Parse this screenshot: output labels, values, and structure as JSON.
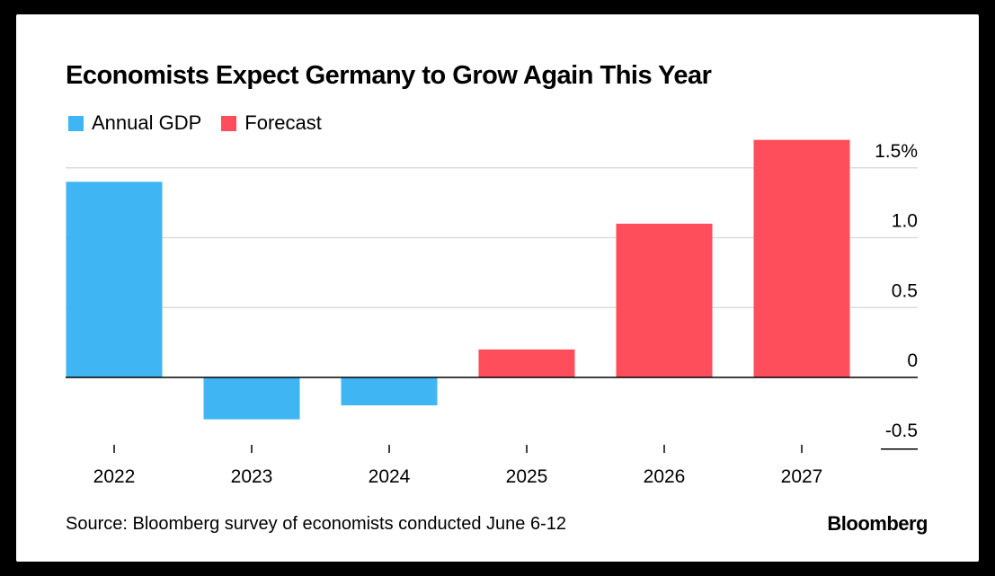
{
  "chart_data": {
    "type": "bar",
    "title": "Economists Expect Germany to Grow Again This Year",
    "categories": [
      "2022",
      "2023",
      "2024",
      "2025",
      "2026",
      "2027"
    ],
    "series": [
      {
        "name": "Annual GDP",
        "color": "#3fb5f4",
        "values": [
          1.4,
          -0.3,
          -0.2,
          null,
          null,
          null
        ]
      },
      {
        "name": "Forecast",
        "color": "#ff4e5b",
        "values": [
          null,
          null,
          null,
          0.2,
          1.1,
          1.7
        ]
      }
    ],
    "y_ticks": [
      {
        "value": 1.5,
        "label": "1.5%"
      },
      {
        "value": 1.0,
        "label": "1.0"
      },
      {
        "value": 0.5,
        "label": "0.5"
      },
      {
        "value": 0,
        "label": "0"
      },
      {
        "value": -0.5,
        "label": "-0.5"
      }
    ],
    "ylim": [
      -0.5,
      1.5
    ],
    "y_axis_position": "right",
    "grid": true,
    "legend_position": "top-left",
    "xlabel": "",
    "ylabel": ""
  },
  "source": "Source: Bloomberg survey of economists conducted June 6-12",
  "brand": "Bloomberg"
}
